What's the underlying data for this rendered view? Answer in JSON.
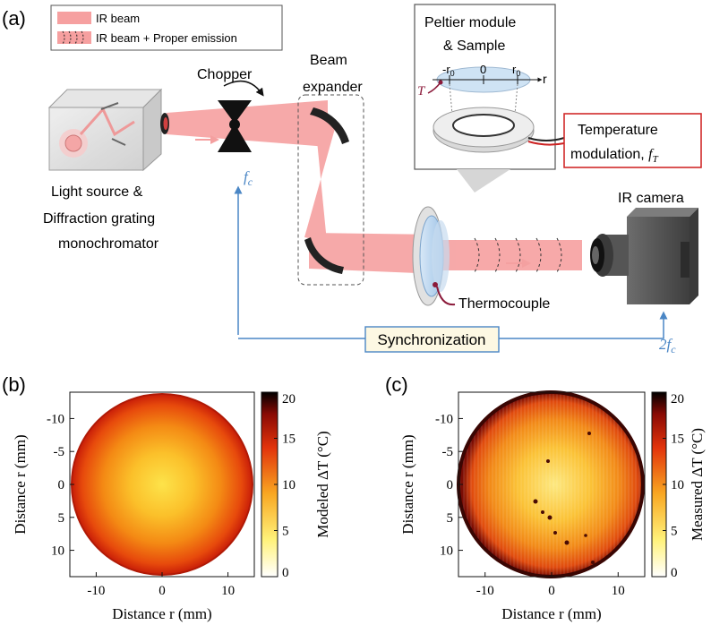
{
  "panel_a": {
    "label": "(a)",
    "legend": {
      "beam": "IR beam",
      "beam_emission": "IR beam + Proper emission"
    },
    "components": {
      "chopper": "Chopper",
      "beam_expander_1": "Beam",
      "beam_expander_2": "expander",
      "peltier_1": "Peltier module",
      "peltier_2": "& Sample",
      "light_source_1": "Light source &",
      "light_source_2": "Diffraction grating",
      "light_source_3": "monochromator",
      "ir_camera": "IR camera",
      "thermocouple": "Thermocouple",
      "temp_mod_1": "Temperature",
      "temp_mod_2": "modulation, ",
      "synchronization": "Synchronization"
    },
    "symbols": {
      "f": "f",
      "c": "c",
      "two_f": "2f",
      "T": "T",
      "neg_r0": "-r",
      "zero": "0",
      "r0": "r",
      "sub0": "0",
      "r_axis": "r"
    },
    "colors": {
      "beam": "#f6a0a0",
      "sync_line": "#4a86c5",
      "temp_box": "#d12a2a",
      "sync_box_fill": "#fdf8e3"
    }
  },
  "panel_b": {
    "label": "(b)",
    "xlabel": "Distance r (mm)",
    "ylabel": "Distance r (mm)",
    "colorbar_label": "Modeled ΔT (°C)",
    "xticks": [
      "-10",
      "0",
      "10"
    ],
    "yticks": [
      "-10",
      "-5",
      "0",
      "5",
      "10"
    ],
    "cticks": [
      "20",
      "15",
      "10",
      "5",
      "0"
    ]
  },
  "panel_c": {
    "label": "(c)",
    "xlabel": "Distance r (mm)",
    "ylabel": "Distance r (mm)",
    "colorbar_label": "Measured ΔT (°C)",
    "xticks": [
      "-10",
      "0",
      "10"
    ],
    "yticks": [
      "-10",
      "-5",
      "0",
      "5",
      "10"
    ],
    "cticks": [
      "20",
      "15",
      "10",
      "5",
      "0"
    ]
  },
  "chart_data": [
    {
      "type": "heatmap",
      "xlabel": "Distance r (mm)",
      "ylabel": "Distance r (mm)",
      "xlim": [
        -14,
        14
      ],
      "ylim": [
        -14,
        14
      ],
      "y_inverted": true,
      "colorbar": {
        "label": "Modeled ΔT (°C)",
        "range": [
          0,
          20
        ],
        "colormap": "hot_r"
      },
      "profile": {
        "r_mm": [
          0,
          3,
          6,
          9,
          12,
          13.5
        ],
        "dT_C": [
          7,
          8,
          10,
          12.5,
          15.5,
          18
        ]
      }
    },
    {
      "type": "heatmap",
      "xlabel": "Distance r (mm)",
      "ylabel": "Distance r (mm)",
      "xlim": [
        -14,
        14
      ],
      "ylim": [
        -14,
        14
      ],
      "y_inverted": true,
      "colorbar": {
        "label": "Measured ΔT (°C)",
        "range": [
          0,
          20
        ],
        "colormap": "hot_r"
      },
      "profile": {
        "r_mm": [
          0,
          4,
          8,
          11,
          13,
          14
        ],
        "dT_C": [
          7,
          8,
          10,
          12.5,
          15.5,
          19
        ]
      }
    }
  ]
}
